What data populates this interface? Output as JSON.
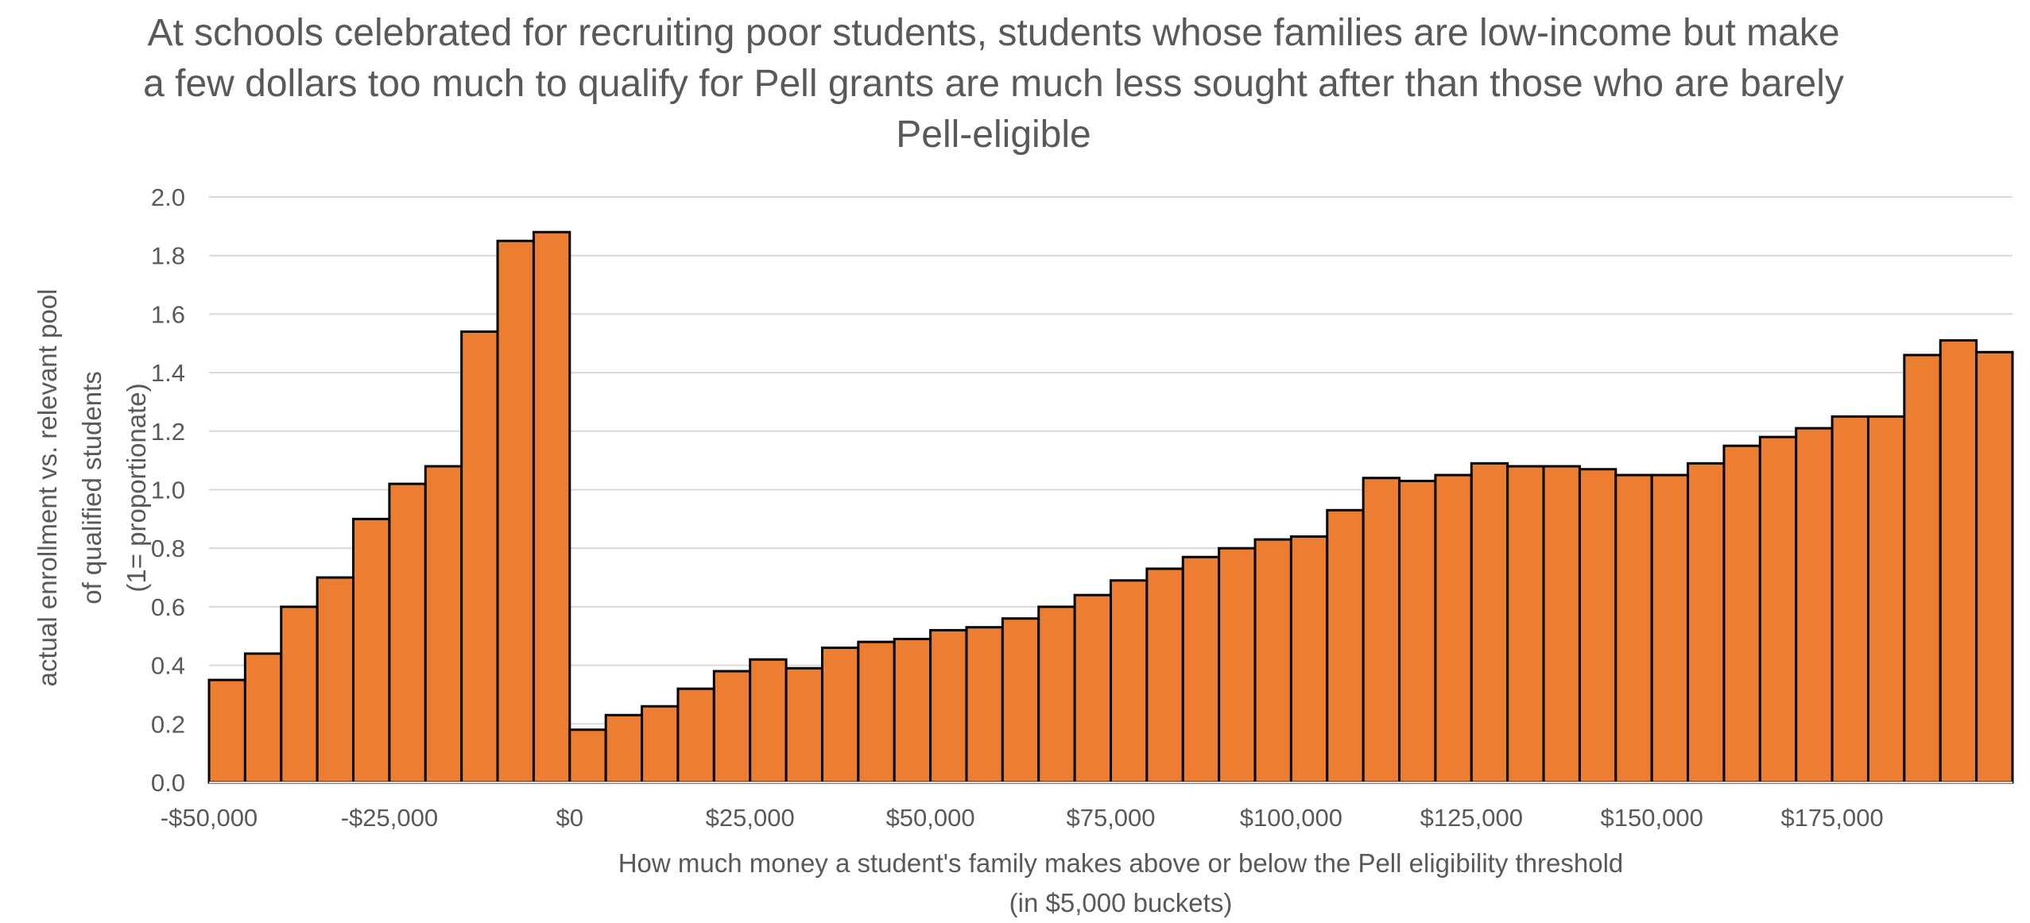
{
  "chart_data": {
    "type": "bar",
    "title": "At schools celebrated for recruiting poor students, students whose families are low-income but make a few dollars too much to qualify for Pell grants are much less sought after than those who are barely Pell-eligible",
    "ylabel_lines": [
      "actual enrollment vs. relevant pool",
      "of qualified students",
      "(1= proportionate)"
    ],
    "xlabel_lines": [
      "How much money a student's family makes above or below the Pell eligibility threshold",
      "(in $5,000 buckets)"
    ],
    "ylim": [
      0,
      2.0
    ],
    "yticks": [
      "0.0",
      "0.2",
      "0.4",
      "0.6",
      "0.8",
      "1.0",
      "1.2",
      "1.4",
      "1.6",
      "1.8",
      "2.0"
    ],
    "xlim": [
      -50000,
      200000
    ],
    "xticks": [
      {
        "value": -50000,
        "label": "-$50,000"
      },
      {
        "value": -25000,
        "label": "-$25,000"
      },
      {
        "value": 0,
        "label": "$0"
      },
      {
        "value": 25000,
        "label": "$25,000"
      },
      {
        "value": 50000,
        "label": "$50,000"
      },
      {
        "value": 75000,
        "label": "$75,000"
      },
      {
        "value": 100000,
        "label": "$100,000"
      },
      {
        "value": 125000,
        "label": "$125,000"
      },
      {
        "value": 150000,
        "label": "$150,000"
      },
      {
        "value": 175000,
        "label": "$175,000"
      }
    ],
    "bucket_width": 5000,
    "bucket_starts": [
      -50000,
      -45000,
      -40000,
      -35000,
      -30000,
      -25000,
      -20000,
      -15000,
      -10000,
      -5000,
      0,
      5000,
      10000,
      15000,
      20000,
      25000,
      30000,
      35000,
      40000,
      45000,
      50000,
      55000,
      60000,
      65000,
      70000,
      75000,
      80000,
      85000,
      90000,
      95000,
      100000,
      105000,
      110000,
      115000,
      120000,
      125000,
      130000,
      135000,
      140000,
      145000,
      150000,
      155000,
      160000,
      165000,
      170000,
      175000,
      180000,
      185000,
      190000,
      195000
    ],
    "values": [
      0.35,
      0.44,
      0.6,
      0.7,
      0.9,
      1.02,
      1.08,
      1.54,
      1.85,
      1.88,
      0.18,
      0.23,
      0.26,
      0.32,
      0.38,
      0.42,
      0.39,
      0.46,
      0.48,
      0.49,
      0.52,
      0.53,
      0.56,
      0.6,
      0.64,
      0.69,
      0.73,
      0.77,
      0.8,
      0.83,
      0.84,
      0.93,
      1.04,
      1.03,
      1.05,
      1.09,
      1.08,
      1.08,
      1.07,
      1.05,
      1.05,
      1.09,
      1.15,
      1.18,
      1.21,
      1.25,
      1.25,
      1.46,
      1.51,
      1.47
    ],
    "colors": {
      "bar": "#ED7D31",
      "bar_edge": "#000000",
      "grid": "#D9D9D9",
      "text": "#595959"
    },
    "grid": true,
    "legend": "none"
  }
}
